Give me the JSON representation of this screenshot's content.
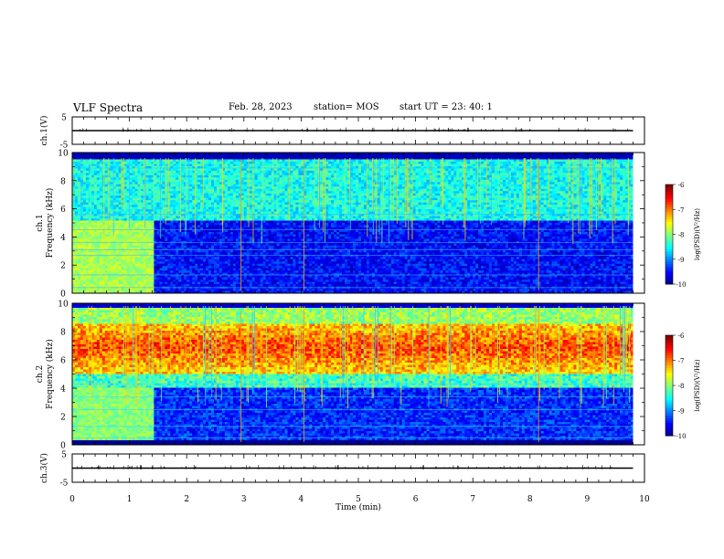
{
  "header": {
    "title": "VLF Spectra",
    "date": "Feb. 28, 2023",
    "station": "station= MOS",
    "start": "start  UT  =   23: 40: 1"
  },
  "chart_data": [
    {
      "type": "line",
      "panel": "ch1-waveform",
      "ylabel": "ch.1(V)",
      "ylim": [
        -5,
        5
      ],
      "yticks": [
        "5",
        "-5"
      ],
      "x": [
        0,
        9.8
      ],
      "values": [
        0,
        0
      ],
      "color": "#000000"
    },
    {
      "type": "heatmap",
      "panel": "ch1-spectrogram",
      "ylabel_line1": "ch.1",
      "ylabel_line2": "Frequency (kHz)",
      "ylim": [
        0,
        10
      ],
      "yticks": [
        "0",
        "2",
        "4",
        "6",
        "8",
        "10"
      ],
      "xlim": [
        0,
        10
      ],
      "colorbar": {
        "label": "log(PSD)(V²/Hz)",
        "ticks": [
          "-6",
          "-7",
          "-8",
          "-9",
          "-10"
        ],
        "range": [
          -10,
          -6
        ]
      }
    },
    {
      "type": "heatmap",
      "panel": "ch2-spectrogram",
      "ylabel_line1": "ch.2",
      "ylabel_line2": "Frequency (kHz)",
      "ylim": [
        0,
        10
      ],
      "yticks": [
        "0",
        "2",
        "4",
        "6",
        "8",
        "10"
      ],
      "xlim": [
        0,
        10
      ],
      "colorbar": {
        "label": "log(PSD)(V²/Hz)",
        "ticks": [
          "-6",
          "-7",
          "-8",
          "-9",
          "-10"
        ],
        "range": [
          -10,
          -6
        ]
      }
    },
    {
      "type": "line",
      "panel": "ch3-waveform",
      "ylabel": "ch.3(V)",
      "ylim": [
        -5,
        5
      ],
      "yticks": [
        "5",
        "-5"
      ],
      "x": [
        0,
        9.8
      ],
      "values": [
        0,
        0
      ],
      "color": "#000000"
    }
  ],
  "xaxis": {
    "label": "Time  (min)",
    "range": [
      0,
      10
    ],
    "ticks": [
      "0",
      "1",
      "2",
      "3",
      "4",
      "5",
      "6",
      "7",
      "8",
      "9",
      "10"
    ]
  }
}
